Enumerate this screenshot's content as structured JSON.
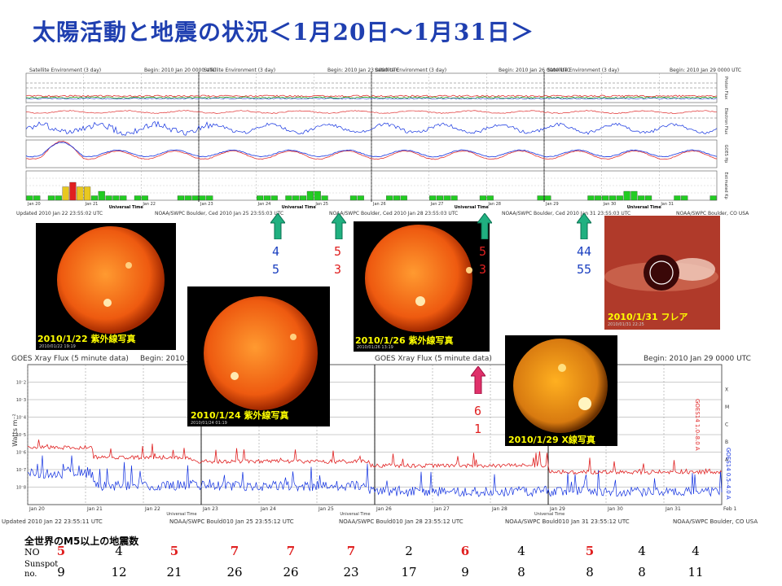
{
  "title": "太陽活動と地震の状況＜1月20日～1月31日＞",
  "top_panel": {
    "headers": [
      "Satellite Environment (3 day)",
      "Begin: 2010 Jan 20 0000 UTC",
      "Satellite Environment (3 day)",
      "Begin: 2010 Jan 23 0000 UTC",
      "Satellite Environment (3 day)",
      "Begin: 2010 Jan 26 0000 UTC",
      "Satellite Environment (3 day)",
      "Begin: 2010 Jan 29 0000 UTC"
    ],
    "right_labels": [
      "Proton Flux",
      "Electron Flux",
      "GOES Hp",
      "Estimated Kp"
    ],
    "day_labels": [
      "Jan 20",
      "Jan 21",
      "Jan 22",
      "Jan 23",
      "Jan 24",
      "Jan 25",
      "Jan 26",
      "Jan 27",
      "Jan 28",
      "Jan 29",
      "Jan 30",
      "Jan 31"
    ],
    "xlabel": "Universal Time",
    "footer": [
      "Updated 2010 Jan 22 23:55:02 UTC",
      "NOAA/SWPC Boulder, Ced 2010 Jan 25 23:55:03 UTC",
      "NOAA/SWPC Boulder, Ced 2010 Jan 28 23:55:03 UTC",
      "NOAA/SWPC Boulder, Ced 2010 Jan 31 23:55:03 UTC",
      "NOAA/SWPC Boulder, CO USA"
    ],
    "colors": {
      "proton_red": "#e03030",
      "proton_green": "#20a020",
      "electron_blue": "#1030e0",
      "kp_green": "#22cc22",
      "kp_yellow": "#e8c820",
      "kp_red": "#e02020"
    },
    "kp_values": [
      1,
      1,
      0,
      1,
      1,
      3,
      4,
      3,
      3,
      1,
      2,
      1,
      1,
      1,
      0,
      1,
      1,
      0,
      0,
      0,
      0,
      1,
      1,
      1,
      1,
      1,
      0,
      0,
      0,
      0,
      0,
      0,
      1,
      1,
      1,
      0,
      1,
      1,
      1,
      2,
      2,
      1,
      0,
      0,
      0,
      1,
      1,
      0,
      0,
      0,
      1,
      1,
      1,
      0,
      0,
      0,
      1,
      1,
      1,
      1,
      0,
      0,
      0,
      1,
      1,
      0,
      0,
      0,
      0,
      0,
      0,
      1,
      1,
      0,
      0,
      0,
      0,
      0,
      1,
      1,
      1,
      1,
      1,
      2,
      2,
      1,
      1,
      0,
      0,
      0,
      1,
      1,
      0,
      0,
      0,
      1
    ]
  },
  "xray_panel": {
    "header": [
      "GOES Xray Flux (5 minute data)",
      "Begin: 2010 Jan 20",
      "GOES Xray Flux (5 minute data)",
      "Begin: 2010 Jan 29 0000 UTC"
    ],
    "ylabel": "Watts m⁻²",
    "class_labels": [
      "X",
      "M",
      "C",
      "B",
      "A"
    ],
    "right_labels": [
      "GOES14 1.0–8.0 A",
      "GOES14 0.5–4.0 A"
    ],
    "day_labels": [
      "Jan 20",
      "Jan 21",
      "Jan 22",
      "Jan 23",
      "Jan 24",
      "Jan 25",
      "Jan 26",
      "Jan 27",
      "Jan 28",
      "Jan 29",
      "Jan 30",
      "Jan 31",
      "Feb 1"
    ],
    "xlabel": "Universal Time",
    "footer": [
      "Updated 2010 Jan 22 23:55:11 UTC",
      "NOAA/SWPC Bould010 Jan 25 23:55:12 UTC",
      "NOAA/SWPC Bould010 Jan 28 23:55:12 UTC",
      "NOAA/SWPC Bould010 Jan 31 23:55:12 UTC",
      "NOAA/SWPC Boulder, CO USA"
    ]
  },
  "photos": [
    {
      "caption": "2010/1/22 紫外線写真",
      "stamp": "2010/01/22 19:19"
    },
    {
      "caption": "2010/1/24 紫外線写真",
      "stamp": "2010/01/24 01:19"
    },
    {
      "caption": "2010/1/26 紫外線写真",
      "stamp": "2010/01/26 13:19"
    },
    {
      "caption": "2010/1/31 フレア",
      "stamp": "2010/01/31 22:25"
    },
    {
      "caption": "2010/1/29 X線写真",
      "stamp": ""
    }
  ],
  "arrows": [
    {
      "color": "#20b080",
      "lines": [
        "4",
        "5"
      ],
      "text_color": "#1a3fc0"
    },
    {
      "color": "#20b080",
      "lines": [
        "5",
        "3"
      ],
      "text_color": "#e02020"
    },
    {
      "color": "#20b080",
      "lines": [
        "5",
        "3"
      ],
      "text_color": "#e02020"
    },
    {
      "color": "#20b080",
      "lines": [
        "44",
        "55"
      ],
      "text_color": "#1a3fc0"
    },
    {
      "color": "#e0306a",
      "lines": [
        "6",
        "1"
      ],
      "text_color": "#e02020"
    }
  ],
  "earthquakes": {
    "title": "全世界のM5以上の地震数",
    "row_labels": [
      "NO",
      "Sunspot no."
    ],
    "no": [
      "5",
      "4",
      "5",
      "7",
      "7",
      "7",
      "2",
      "6",
      "4",
      "5",
      "4",
      "4"
    ],
    "no_colors": [
      "#e02020",
      "#000000",
      "#e02020",
      "#e02020",
      "#e02020",
      "#e02020",
      "#000000",
      "#e02020",
      "#000000",
      "#e02020",
      "#000000",
      "#000000"
    ],
    "sunspot": [
      "9",
      "12",
      "21",
      "26",
      "26",
      "23",
      "17",
      "9",
      "8",
      "8",
      "8",
      "11"
    ]
  }
}
